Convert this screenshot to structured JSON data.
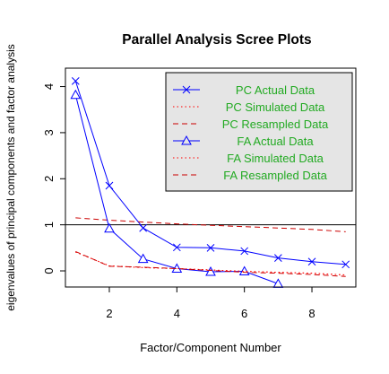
{
  "chart_data": {
    "type": "line",
    "title": "Parallel Analysis Scree Plots",
    "xlabel": "Factor/Component Number",
    "ylabel": "eigenvalues of principal components and factor analysis",
    "xlim": [
      0.7,
      9.3
    ],
    "ylim": [
      -0.35,
      4.4
    ],
    "xticks": [
      2,
      4,
      6,
      8
    ],
    "yticks": [
      0,
      1,
      2,
      3,
      4
    ],
    "reference_line": 1,
    "x": [
      1,
      2,
      3,
      4,
      5,
      6,
      7,
      8,
      9
    ],
    "legend_position": "top-right",
    "legend_background": "#e5e5e5",
    "legend_text_color": "#22aa22",
    "series": [
      {
        "name": "PC  Actual Data",
        "color": "#0000ff",
        "line": "solid",
        "marker": "x",
        "values": [
          4.12,
          1.85,
          0.93,
          0.51,
          0.5,
          0.43,
          0.28,
          0.2,
          0.14
        ]
      },
      {
        "name": "PC  Simulated Data",
        "color": "#ff0000",
        "line": "dotted",
        "marker": "none",
        "values": [
          0.41,
          0.11,
          0.07,
          0.05,
          0.02,
          -0.01,
          -0.03,
          -0.05,
          -0.09
        ]
      },
      {
        "name": "PC  Resampled Data",
        "color": "#cc0000",
        "line": "dashed",
        "marker": "none",
        "values": [
          1.15,
          1.1,
          1.06,
          1.02,
          0.99,
          0.96,
          0.93,
          0.9,
          0.85
        ]
      },
      {
        "name": "FA  Actual Data",
        "color": "#0000ff",
        "line": "solid",
        "marker": "triangle",
        "values": [
          3.82,
          0.92,
          0.26,
          0.05,
          -0.02,
          -0.01,
          -0.28,
          null,
          null
        ]
      },
      {
        "name": "FA  Simulated Data",
        "color": "#ff0000",
        "line": "dotted",
        "marker": "none",
        "values": [
          0.41,
          0.11,
          0.07,
          0.05,
          0.02,
          -0.01,
          -0.03,
          -0.05,
          -0.09
        ]
      },
      {
        "name": "FA  Resampled Data",
        "color": "#cc0000",
        "line": "dashed",
        "marker": "none",
        "values": [
          0.42,
          0.1,
          0.08,
          0.05,
          0.01,
          -0.03,
          -0.05,
          -0.08,
          -0.12
        ]
      }
    ]
  }
}
